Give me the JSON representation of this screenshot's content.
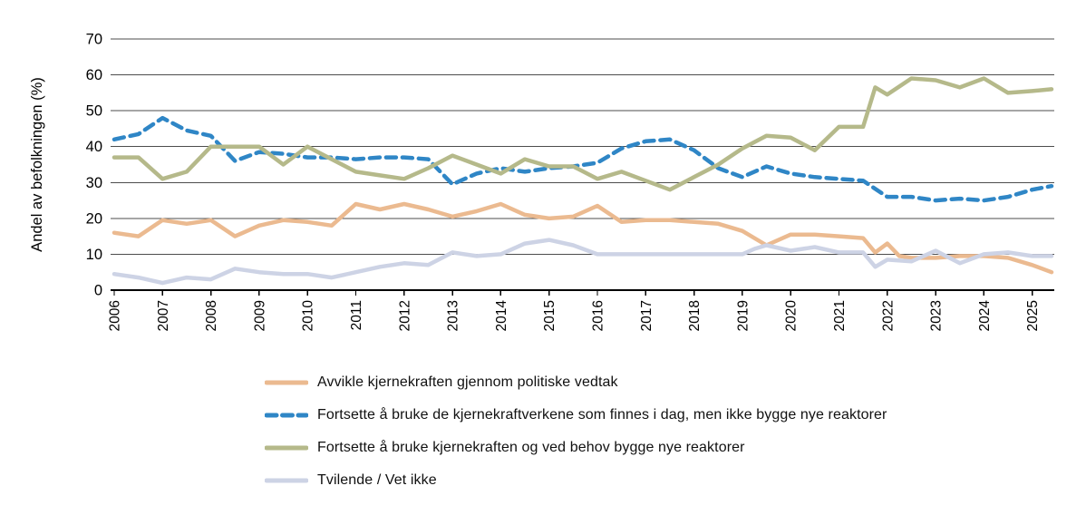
{
  "chart_data": {
    "type": "line",
    "title": "",
    "ylabel": "Andel av befolkningen (%)",
    "xlabel": "",
    "ylim": [
      0,
      70
    ],
    "y_step": 10,
    "y_tick_labels": [
      "0",
      "10",
      "20",
      "30",
      "40",
      "50",
      "60",
      "70"
    ],
    "x_tick_labels": [
      "2006",
      "2007",
      "2008",
      "2009",
      "2010",
      "2011",
      "2012",
      "2013",
      "2014",
      "2015",
      "2016",
      "2017",
      "2018",
      "2019",
      "2020",
      "2021",
      "2022",
      "2023",
      "2024",
      "2025"
    ],
    "x_range": [
      2006,
      2025.45
    ],
    "grid": true,
    "legend_position": "bottom",
    "axis_color": "#000000",
    "gridline_color": "#4d4d4d",
    "series": [
      {
        "id": "avvikle",
        "label": "Avvikle kjernekraften gjennom politiske vedtak",
        "color": "#EBBA90",
        "dash": null,
        "points": [
          [
            2006,
            16
          ],
          [
            2006.5,
            15
          ],
          [
            2007,
            19.5
          ],
          [
            2007.5,
            18.5
          ],
          [
            2008,
            19.5
          ],
          [
            2008.5,
            15
          ],
          [
            2009,
            18
          ],
          [
            2009.5,
            19.5
          ],
          [
            2010,
            19
          ],
          [
            2010.5,
            18
          ],
          [
            2011,
            24
          ],
          [
            2011.5,
            22.5
          ],
          [
            2012,
            24
          ],
          [
            2012.5,
            22.5
          ],
          [
            2013,
            20.5
          ],
          [
            2013.5,
            22
          ],
          [
            2014,
            24
          ],
          [
            2014.5,
            21
          ],
          [
            2015,
            20
          ],
          [
            2015.5,
            20.5
          ],
          [
            2016,
            23.5
          ],
          [
            2016.5,
            19
          ],
          [
            2017,
            19.5
          ],
          [
            2017.5,
            19.5
          ],
          [
            2018,
            19
          ],
          [
            2018.5,
            18.5
          ],
          [
            2019,
            16.5
          ],
          [
            2019.5,
            12.5
          ],
          [
            2020,
            15.5
          ],
          [
            2020.5,
            15.5
          ],
          [
            2021,
            15
          ],
          [
            2021.5,
            14.5
          ],
          [
            2021.75,
            10.5
          ],
          [
            2022,
            13
          ],
          [
            2022.25,
            9.5
          ],
          [
            2022.5,
            9
          ],
          [
            2023,
            9
          ],
          [
            2023.5,
            9.5
          ],
          [
            2024,
            9.5
          ],
          [
            2024.5,
            9
          ],
          [
            2025,
            7
          ],
          [
            2025.4,
            5
          ]
        ]
      },
      {
        "id": "fortsette-uten-nye",
        "label": "Fortsette å bruke de kjernekraftverkene som finnes i dag, men ikke bygge nye reaktorer",
        "color": "#2F86C6",
        "dash": [
          11,
          7
        ],
        "points": [
          [
            2006,
            42
          ],
          [
            2006.5,
            43.5
          ],
          [
            2007,
            48
          ],
          [
            2007.5,
            44.5
          ],
          [
            2008,
            43
          ],
          [
            2008.5,
            36
          ],
          [
            2009,
            38.5
          ],
          [
            2009.5,
            38
          ],
          [
            2010,
            37
          ],
          [
            2010.5,
            37
          ],
          [
            2011,
            36.5
          ],
          [
            2011.5,
            37
          ],
          [
            2012,
            37
          ],
          [
            2012.5,
            36.5
          ],
          [
            2013,
            29.5
          ],
          [
            2013.5,
            32.5
          ],
          [
            2014,
            34
          ],
          [
            2014.5,
            33
          ],
          [
            2015,
            34
          ],
          [
            2015.5,
            34.5
          ],
          [
            2016,
            35.5
          ],
          [
            2016.5,
            39.5
          ],
          [
            2017,
            41.5
          ],
          [
            2017.5,
            42
          ],
          [
            2018,
            39
          ],
          [
            2018.5,
            34
          ],
          [
            2019,
            31.5
          ],
          [
            2019.5,
            34.5
          ],
          [
            2020,
            32.5
          ],
          [
            2020.5,
            31.5
          ],
          [
            2021,
            31
          ],
          [
            2021.5,
            30.5
          ],
          [
            2022,
            26
          ],
          [
            2022.5,
            26
          ],
          [
            2023,
            25
          ],
          [
            2023.5,
            25.5
          ],
          [
            2024,
            25
          ],
          [
            2024.5,
            26
          ],
          [
            2025,
            28
          ],
          [
            2025.4,
            29
          ]
        ]
      },
      {
        "id": "fortsette-med-nye",
        "label": "Fortsette å bruke kjernekraften og ved behov bygge nye reaktorer",
        "color": "#B5B98A",
        "dash": null,
        "points": [
          [
            2006,
            37
          ],
          [
            2006.5,
            37
          ],
          [
            2007,
            31
          ],
          [
            2007.5,
            33
          ],
          [
            2008,
            40
          ],
          [
            2008.5,
            40
          ],
          [
            2009,
            40
          ],
          [
            2009.5,
            35
          ],
          [
            2010,
            40
          ],
          [
            2010.5,
            36.5
          ],
          [
            2011,
            33
          ],
          [
            2011.5,
            32
          ],
          [
            2012,
            31
          ],
          [
            2012.5,
            34
          ],
          [
            2013,
            37.5
          ],
          [
            2013.5,
            35
          ],
          [
            2014,
            32.5
          ],
          [
            2014.5,
            36.5
          ],
          [
            2015,
            34.5
          ],
          [
            2015.5,
            34.5
          ],
          [
            2016,
            31
          ],
          [
            2016.5,
            33
          ],
          [
            2017,
            30.5
          ],
          [
            2017.5,
            28
          ],
          [
            2018,
            31.5
          ],
          [
            2018.5,
            35
          ],
          [
            2019,
            39.5
          ],
          [
            2019.5,
            43
          ],
          [
            2020,
            42.5
          ],
          [
            2020.5,
            39
          ],
          [
            2021,
            45.5
          ],
          [
            2021.5,
            45.5
          ],
          [
            2021.75,
            56.5
          ],
          [
            2022,
            54.5
          ],
          [
            2022.5,
            59
          ],
          [
            2023,
            58.5
          ],
          [
            2023.5,
            56.5
          ],
          [
            2024,
            59
          ],
          [
            2024.5,
            55
          ],
          [
            2025,
            55.5
          ],
          [
            2025.4,
            56
          ]
        ]
      },
      {
        "id": "tvilende",
        "label": "Tvilende / Vet ikke",
        "color": "#CDD3E5",
        "dash": null,
        "points": [
          [
            2006,
            4.5
          ],
          [
            2006.5,
            3.5
          ],
          [
            2007,
            2
          ],
          [
            2007.5,
            3.5
          ],
          [
            2008,
            3
          ],
          [
            2008.5,
            6
          ],
          [
            2009,
            5
          ],
          [
            2009.5,
            4.5
          ],
          [
            2010,
            4.5
          ],
          [
            2010.5,
            3.5
          ],
          [
            2011,
            5
          ],
          [
            2011.5,
            6.5
          ],
          [
            2012,
            7.5
          ],
          [
            2012.5,
            7
          ],
          [
            2013,
            10.5
          ],
          [
            2013.5,
            9.5
          ],
          [
            2014,
            10
          ],
          [
            2014.5,
            13
          ],
          [
            2015,
            14
          ],
          [
            2015.5,
            12.5
          ],
          [
            2016,
            10
          ],
          [
            2016.5,
            10
          ],
          [
            2017,
            10
          ],
          [
            2017.5,
            10
          ],
          [
            2018,
            10
          ],
          [
            2018.5,
            10
          ],
          [
            2019,
            10
          ],
          [
            2019.25,
            11.5
          ],
          [
            2019.5,
            12.5
          ],
          [
            2020,
            11
          ],
          [
            2020.5,
            12
          ],
          [
            2021,
            10.5
          ],
          [
            2021.5,
            10.5
          ],
          [
            2021.75,
            6.5
          ],
          [
            2022,
            8.5
          ],
          [
            2022.5,
            8
          ],
          [
            2023,
            11
          ],
          [
            2023.5,
            7.5
          ],
          [
            2024,
            10
          ],
          [
            2024.5,
            10.5
          ],
          [
            2025,
            9.5
          ],
          [
            2025.4,
            9.5
          ]
        ]
      }
    ]
  }
}
